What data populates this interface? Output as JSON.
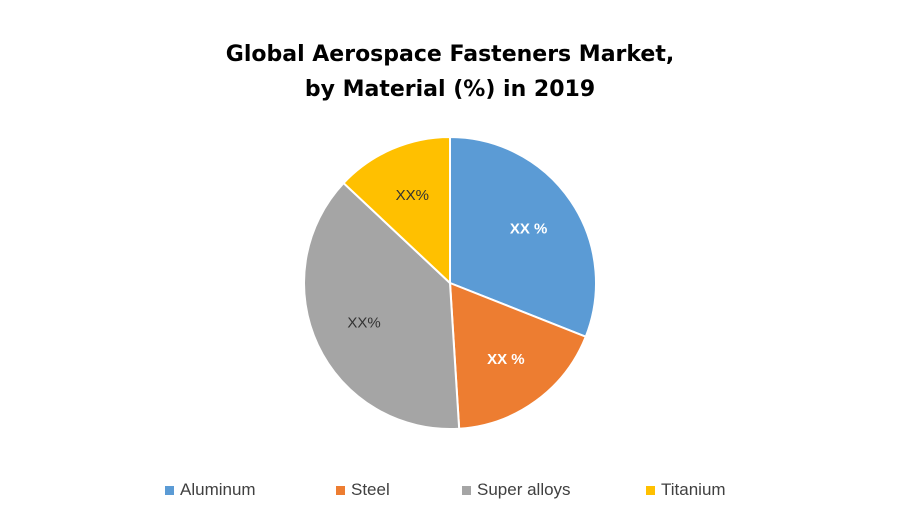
{
  "chart_data": {
    "type": "pie",
    "title_lines": [
      "Global Aerospace Fasteners Market,",
      "by Material (%) in 2019"
    ],
    "categories": [
      "Aluminum",
      "Steel",
      "Super alloys",
      "Titanium"
    ],
    "values": [
      31,
      18,
      38,
      13
    ],
    "slice_labels": [
      "XX %",
      "XX %",
      "XX%",
      "XX%"
    ],
    "label_styles": [
      {
        "color": "#ffffff",
        "bold": true
      },
      {
        "color": "#ffffff",
        "bold": true
      },
      {
        "color": "#333333",
        "bold": false
      },
      {
        "color": "#333333",
        "bold": false
      }
    ],
    "colors": [
      "#5B9BD5",
      "#ED7D31",
      "#A5A5A5",
      "#FFC000"
    ],
    "start_angle_deg": 0,
    "direction": "clockwise",
    "legend_position": "bottom"
  }
}
